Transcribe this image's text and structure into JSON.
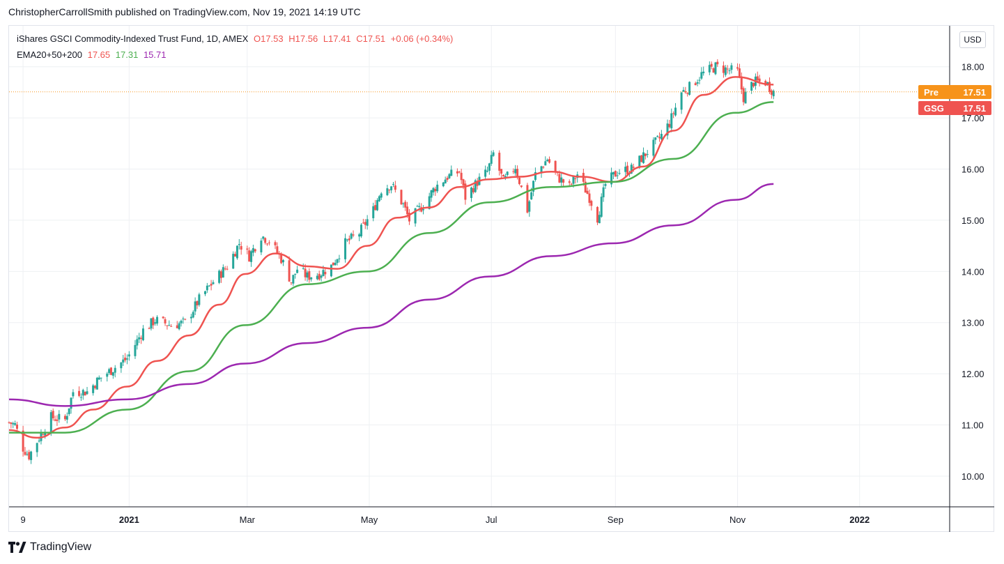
{
  "publisher_line": "ChristopherCarrollSmith published on TradingView.com, Nov 19, 2021 14:19 UTC",
  "legend": {
    "symbol": "iShares GSCI Commodity-Indexed Trust Fund, 1D, AMEX",
    "open": "O17.53",
    "high": "H17.56",
    "low": "L17.41",
    "close": "C17.51",
    "change": "+0.06 (+0.34%)",
    "ema_label": "EMA20+50+200",
    "ema20": "17.65",
    "ema50": "17.31",
    "ema200": "15.71"
  },
  "currency": "USD",
  "tags": {
    "pre_label": "Pre",
    "pre_value": "17.51",
    "gsg_label": "GSG",
    "gsg_value": "17.51"
  },
  "brand": "TradingView",
  "colors": {
    "up": "#26a69a",
    "down": "#ef5350",
    "ema20": "#ef5350",
    "ema50": "#4caf50",
    "ema200": "#9c27b0",
    "grid": "#eef0f3"
  },
  "chart_data": {
    "type": "line",
    "title": "iShares GSCI Commodity-Indexed Trust Fund, 1D, AMEX",
    "y_range": [
      9.4,
      18.8
    ],
    "y_ticks": [
      10,
      11,
      12,
      13,
      14,
      15,
      16,
      17,
      18
    ],
    "y_tick_labels": [
      "10.00",
      "11.00",
      "12.00",
      "13.00",
      "14.00",
      "15.00",
      "16.00",
      "17.00",
      "18.00"
    ],
    "x_range": [
      "2020-11-02",
      "2022-02-15"
    ],
    "x_ticks": [
      {
        "date": "2020-11-09",
        "label": "9"
      },
      {
        "date": "2021-01-01",
        "label": "2021"
      },
      {
        "date": "2021-03-01",
        "label": "Mar"
      },
      {
        "date": "2021-05-01",
        "label": "May"
      },
      {
        "date": "2021-07-01",
        "label": "Jul"
      },
      {
        "date": "2021-09-01",
        "label": "Sep"
      },
      {
        "date": "2021-11-01",
        "label": "Nov"
      },
      {
        "date": "2022-01-01",
        "label": "2022"
      }
    ],
    "last_price": 17.51,
    "price_anchors": [
      {
        "date": "2020-11-02",
        "value": 11.05
      },
      {
        "date": "2020-11-05",
        "value": 11.0
      },
      {
        "date": "2020-11-09",
        "value": 10.55
      },
      {
        "date": "2020-11-12",
        "value": 10.4
      },
      {
        "date": "2020-11-17",
        "value": 10.75
      },
      {
        "date": "2020-11-23",
        "value": 11.15
      },
      {
        "date": "2020-11-30",
        "value": 11.1
      },
      {
        "date": "2020-12-04",
        "value": 11.65
      },
      {
        "date": "2020-12-11",
        "value": 11.65
      },
      {
        "date": "2020-12-17",
        "value": 11.9
      },
      {
        "date": "2020-12-24",
        "value": 12.1
      },
      {
        "date": "2020-12-31",
        "value": 12.3
      },
      {
        "date": "2021-01-08",
        "value": 12.85
      },
      {
        "date": "2021-01-14",
        "value": 13.05
      },
      {
        "date": "2021-01-22",
        "value": 12.95
      },
      {
        "date": "2021-01-29",
        "value": 13.0
      },
      {
        "date": "2021-02-05",
        "value": 13.45
      },
      {
        "date": "2021-02-12",
        "value": 13.8
      },
      {
        "date": "2021-02-19",
        "value": 14.1
      },
      {
        "date": "2021-02-25",
        "value": 14.55
      },
      {
        "date": "2021-03-02",
        "value": 14.3
      },
      {
        "date": "2021-03-08",
        "value": 14.7
      },
      {
        "date": "2021-03-12",
        "value": 14.6
      },
      {
        "date": "2021-03-18",
        "value": 14.25
      },
      {
        "date": "2021-03-23",
        "value": 13.8
      },
      {
        "date": "2021-03-26",
        "value": 14.05
      },
      {
        "date": "2021-03-31",
        "value": 13.9
      },
      {
        "date": "2021-04-06",
        "value": 13.95
      },
      {
        "date": "2021-04-12",
        "value": 14.1
      },
      {
        "date": "2021-04-19",
        "value": 14.55
      },
      {
        "date": "2021-04-26",
        "value": 14.75
      },
      {
        "date": "2021-05-03",
        "value": 15.2
      },
      {
        "date": "2021-05-07",
        "value": 15.6
      },
      {
        "date": "2021-05-12",
        "value": 15.7
      },
      {
        "date": "2021-05-18",
        "value": 15.3
      },
      {
        "date": "2021-05-21",
        "value": 15.0
      },
      {
        "date": "2021-05-28",
        "value": 15.3
      },
      {
        "date": "2021-06-03",
        "value": 15.65
      },
      {
        "date": "2021-06-09",
        "value": 15.85
      },
      {
        "date": "2021-06-15",
        "value": 15.95
      },
      {
        "date": "2021-06-18",
        "value": 15.45
      },
      {
        "date": "2021-06-24",
        "value": 15.75
      },
      {
        "date": "2021-06-29",
        "value": 15.95
      },
      {
        "date": "2021-07-02",
        "value": 16.3
      },
      {
        "date": "2021-07-07",
        "value": 15.75
      },
      {
        "date": "2021-07-13",
        "value": 16.05
      },
      {
        "date": "2021-07-19",
        "value": 15.2
      },
      {
        "date": "2021-07-23",
        "value": 15.9
      },
      {
        "date": "2021-07-29",
        "value": 16.2
      },
      {
        "date": "2021-08-03",
        "value": 15.85
      },
      {
        "date": "2021-08-09",
        "value": 15.65
      },
      {
        "date": "2021-08-13",
        "value": 15.9
      },
      {
        "date": "2021-08-19",
        "value": 15.45
      },
      {
        "date": "2021-08-23",
        "value": 15.05
      },
      {
        "date": "2021-08-27",
        "value": 15.7
      },
      {
        "date": "2021-09-02",
        "value": 15.95
      },
      {
        "date": "2021-09-09",
        "value": 16.0
      },
      {
        "date": "2021-09-16",
        "value": 16.3
      },
      {
        "date": "2021-09-23",
        "value": 16.6
      },
      {
        "date": "2021-09-28",
        "value": 16.9
      },
      {
        "date": "2021-10-04",
        "value": 17.5
      },
      {
        "date": "2021-10-08",
        "value": 17.6
      },
      {
        "date": "2021-10-14",
        "value": 17.85
      },
      {
        "date": "2021-10-21",
        "value": 18.0
      },
      {
        "date": "2021-10-26",
        "value": 17.95
      },
      {
        "date": "2021-11-01",
        "value": 17.9
      },
      {
        "date": "2021-11-04",
        "value": 17.4
      },
      {
        "date": "2021-11-09",
        "value": 17.7
      },
      {
        "date": "2021-11-15",
        "value": 17.7
      },
      {
        "date": "2021-11-19",
        "value": 17.51
      }
    ],
    "series": [
      {
        "name": "EMA20",
        "color": "#ef5350",
        "points": [
          {
            "date": "2020-11-02",
            "value": 10.9
          },
          {
            "date": "2020-11-16",
            "value": 10.75
          },
          {
            "date": "2020-11-30",
            "value": 10.95
          },
          {
            "date": "2020-12-14",
            "value": 11.3
          },
          {
            "date": "2020-12-31",
            "value": 11.75
          },
          {
            "date": "2021-01-15",
            "value": 12.25
          },
          {
            "date": "2021-01-31",
            "value": 12.75
          },
          {
            "date": "2021-02-15",
            "value": 13.35
          },
          {
            "date": "2021-02-28",
            "value": 13.95
          },
          {
            "date": "2021-03-15",
            "value": 14.35
          },
          {
            "date": "2021-03-31",
            "value": 14.1
          },
          {
            "date": "2021-04-15",
            "value": 14.05
          },
          {
            "date": "2021-04-30",
            "value": 14.5
          },
          {
            "date": "2021-05-15",
            "value": 15.05
          },
          {
            "date": "2021-05-31",
            "value": 15.25
          },
          {
            "date": "2021-06-15",
            "value": 15.65
          },
          {
            "date": "2021-06-30",
            "value": 15.8
          },
          {
            "date": "2021-07-15",
            "value": 15.85
          },
          {
            "date": "2021-07-31",
            "value": 15.95
          },
          {
            "date": "2021-08-15",
            "value": 15.85
          },
          {
            "date": "2021-08-31",
            "value": 15.75
          },
          {
            "date": "2021-09-15",
            "value": 16.05
          },
          {
            "date": "2021-09-30",
            "value": 16.75
          },
          {
            "date": "2021-10-15",
            "value": 17.45
          },
          {
            "date": "2021-10-31",
            "value": 17.8
          },
          {
            "date": "2021-11-19",
            "value": 17.65
          }
        ]
      },
      {
        "name": "EMA50",
        "color": "#4caf50",
        "points": [
          {
            "date": "2020-11-02",
            "value": 10.85
          },
          {
            "date": "2020-11-30",
            "value": 10.85
          },
          {
            "date": "2020-12-31",
            "value": 11.3
          },
          {
            "date": "2021-01-31",
            "value": 12.05
          },
          {
            "date": "2021-02-28",
            "value": 12.95
          },
          {
            "date": "2021-03-31",
            "value": 13.75
          },
          {
            "date": "2021-04-30",
            "value": 14.0
          },
          {
            "date": "2021-05-31",
            "value": 14.75
          },
          {
            "date": "2021-06-30",
            "value": 15.35
          },
          {
            "date": "2021-07-31",
            "value": 15.65
          },
          {
            "date": "2021-08-31",
            "value": 15.75
          },
          {
            "date": "2021-09-30",
            "value": 16.2
          },
          {
            "date": "2021-10-31",
            "value": 17.1
          },
          {
            "date": "2021-11-19",
            "value": 17.31
          }
        ]
      },
      {
        "name": "EMA200",
        "color": "#9c27b0",
        "points": [
          {
            "date": "2020-11-02",
            "value": 11.5
          },
          {
            "date": "2020-11-30",
            "value": 11.37
          },
          {
            "date": "2020-12-31",
            "value": 11.5
          },
          {
            "date": "2021-01-31",
            "value": 11.8
          },
          {
            "date": "2021-02-28",
            "value": 12.2
          },
          {
            "date": "2021-03-31",
            "value": 12.6
          },
          {
            "date": "2021-04-30",
            "value": 12.9
          },
          {
            "date": "2021-05-31",
            "value": 13.45
          },
          {
            "date": "2021-06-30",
            "value": 13.9
          },
          {
            "date": "2021-07-31",
            "value": 14.3
          },
          {
            "date": "2021-08-31",
            "value": 14.55
          },
          {
            "date": "2021-09-30",
            "value": 14.9
          },
          {
            "date": "2021-10-31",
            "value": 15.4
          },
          {
            "date": "2021-11-19",
            "value": 15.71
          }
        ]
      }
    ]
  }
}
